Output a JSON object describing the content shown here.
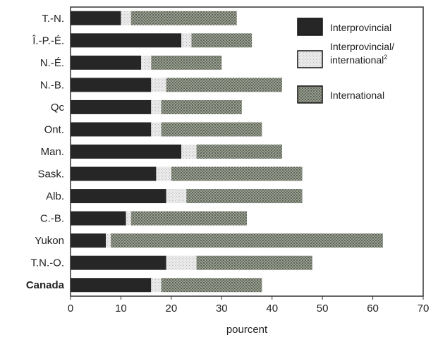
{
  "chart_data": {
    "type": "bar",
    "orientation": "horizontal",
    "stacked": true,
    "categories": [
      "T.-N.",
      "Î.-P.-É.",
      "N.-É.",
      "N.-B.",
      "Qc",
      "Ont.",
      "Man.",
      "Sask.",
      "Alb.",
      "C.-B.",
      "Yukon",
      "T.N.-O.",
      "Canada"
    ],
    "emphasized_category": "Canada",
    "series": [
      {
        "name": "Interprovincial",
        "pattern": "solid-dark",
        "values": [
          10,
          22,
          14,
          16,
          16,
          16,
          22,
          17,
          19,
          11,
          7,
          19,
          16
        ]
      },
      {
        "name": "Interprovincial/\ninternational²",
        "pattern": "light",
        "values": [
          2,
          2,
          2,
          3,
          2,
          2,
          3,
          3,
          4,
          1,
          1,
          6,
          2
        ]
      },
      {
        "name": "International",
        "pattern": "crosshatch",
        "values": [
          21,
          12,
          14,
          23,
          16,
          20,
          17,
          26,
          23,
          23,
          54,
          23,
          20
        ]
      }
    ],
    "xlabel": "pourcent",
    "xlim": [
      0,
      70
    ],
    "xticks": [
      0,
      10,
      20,
      30,
      40,
      50,
      60,
      70
    ],
    "grid": false,
    "legend_position": "top-right",
    "colors": {
      "interprovincial": "#262626",
      "mixed": "#e6e6e6",
      "international": "#8a8f86",
      "frame": "#333333"
    }
  }
}
